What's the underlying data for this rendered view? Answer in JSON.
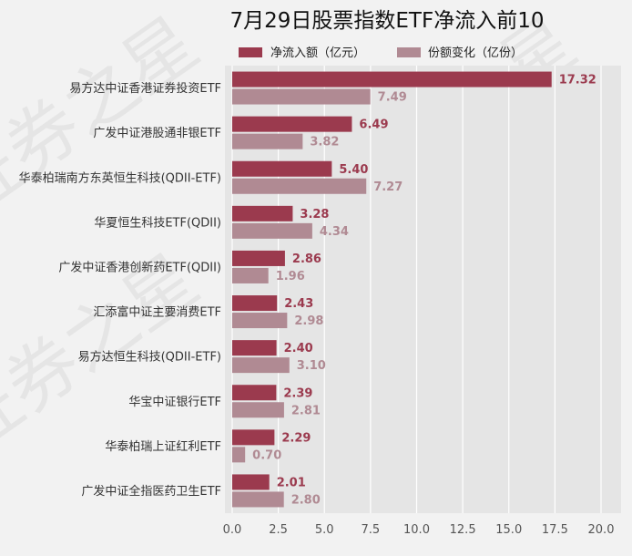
{
  "chart_data": {
    "type": "bar",
    "orientation": "horizontal",
    "title": "7月29日股票指数ETF净流入前10",
    "categories": [
      "易方达中证香港证券投资ETF",
      "广发中证港股通非银ETF",
      "华泰柏瑞南方东英恒生科技(QDII-ETF)",
      "华夏恒生科技ETF(QDII)",
      "广发中证香港创新药ETF(QDII)",
      "汇添富中证主要消费ETF",
      "易方达恒生科技(QDII-ETF)",
      "华宝中证银行ETF",
      "华泰柏瑞上证红利ETF",
      "广发中证全指医药卫生ETF"
    ],
    "series": [
      {
        "name": "净流入额（亿元）",
        "color": "#9b3a4e",
        "values": [
          17.32,
          6.49,
          5.4,
          3.28,
          2.86,
          2.43,
          2.4,
          2.39,
          2.29,
          2.01
        ]
      },
      {
        "name": "份额变化（亿份）",
        "color": "#b08a93",
        "values": [
          7.49,
          3.82,
          7.27,
          4.34,
          1.96,
          2.98,
          3.1,
          2.81,
          0.7,
          2.8
        ]
      }
    ],
    "xlim": [
      0,
      21.3
    ],
    "xticks": [
      0.0,
      2.5,
      5.0,
      7.5,
      10.0,
      12.5,
      15.0,
      17.5,
      20.0
    ],
    "xtick_labels": [
      "0.0",
      "2.5",
      "5.0",
      "7.5",
      "10.0",
      "12.5",
      "15.0",
      "17.5",
      "20.0"
    ],
    "xlabel": "",
    "ylabel": "",
    "grid": true,
    "legend_position": "top",
    "plot_background": "#e5e5e5",
    "value_labels": true
  },
  "watermark": "证券之星"
}
